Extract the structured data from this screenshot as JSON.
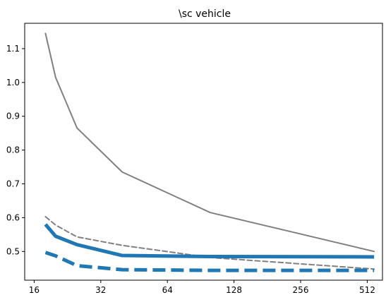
{
  "chart_data": {
    "type": "line",
    "title": "\\sc vehicle",
    "xlabel": "",
    "ylabel": "",
    "xscale": "log2",
    "xlim": [
      14.5,
      600
    ],
    "ylim": [
      0.415,
      1.175
    ],
    "grid": false,
    "x_ticks": [
      {
        "value": 16,
        "label": "16"
      },
      {
        "value": 32,
        "label": "32"
      },
      {
        "value": 64,
        "label": "64"
      },
      {
        "value": 128,
        "label": "128"
      },
      {
        "value": 256,
        "label": "256"
      },
      {
        "value": 512,
        "label": "512"
      }
    ],
    "y_ticks": [
      {
        "value": 0.5,
        "label": "0.5"
      },
      {
        "value": 0.6,
        "label": "0.6"
      },
      {
        "value": 0.7,
        "label": "0.7"
      },
      {
        "value": 0.8,
        "label": "0.8"
      },
      {
        "value": 0.9,
        "label": "0.9"
      },
      {
        "value": 1.0,
        "label": "1.0"
      },
      {
        "value": 1.1,
        "label": "1.1"
      }
    ],
    "series": [
      {
        "color": "#808080",
        "style": "solid",
        "weight": "thin",
        "points": [
          [
            18,
            1.145
          ],
          [
            20,
            1.015
          ],
          [
            25,
            0.865
          ],
          [
            40,
            0.735
          ],
          [
            100,
            0.615
          ],
          [
            550,
            0.5
          ]
        ]
      },
      {
        "color": "#808080",
        "style": "dashed",
        "weight": "thin",
        "points": [
          [
            18,
            0.603
          ],
          [
            20,
            0.578
          ],
          [
            25,
            0.543
          ],
          [
            40,
            0.518
          ],
          [
            100,
            0.482
          ],
          [
            550,
            0.448
          ]
        ]
      },
      {
        "color": "#1f77b4",
        "style": "solid",
        "weight": "thick",
        "points": [
          [
            18,
            0.58
          ],
          [
            20,
            0.545
          ],
          [
            25,
            0.52
          ],
          [
            40,
            0.488
          ],
          [
            100,
            0.485
          ],
          [
            550,
            0.484
          ]
        ]
      },
      {
        "color": "#1f77b4",
        "style": "dashed",
        "weight": "thick",
        "points": [
          [
            18,
            0.497
          ],
          [
            20,
            0.487
          ],
          [
            25,
            0.458
          ],
          [
            40,
            0.446
          ],
          [
            100,
            0.444
          ],
          [
            550,
            0.444
          ]
        ]
      }
    ]
  }
}
